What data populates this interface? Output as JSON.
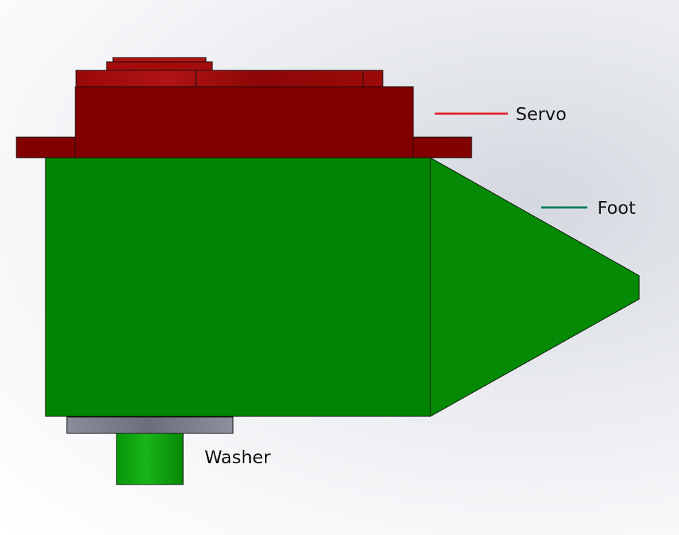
{
  "labels": {
    "servo": "Servo",
    "foot": "Foot",
    "washer": "Washer"
  },
  "colors": {
    "servo_dark": "#7f0000",
    "servo_light": "#a30e0e",
    "foot": "#018401",
    "washer": "#7a7d8c",
    "stem": "#0ea60e",
    "servo_leader": "#e0222a",
    "foot_leader": "#0b7d5a"
  }
}
